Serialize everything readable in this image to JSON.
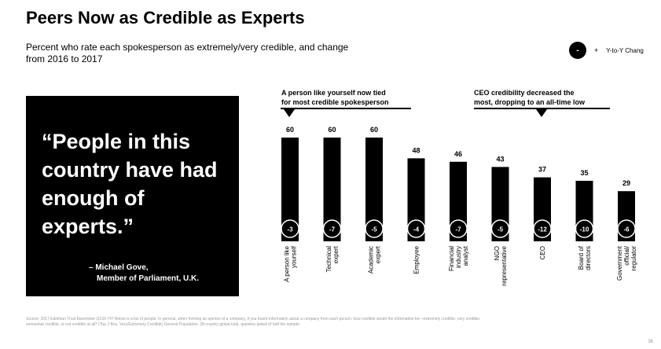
{
  "title": "Peers Now as Credible as Experts",
  "subtitle": "Percent who rate each spokesperson as extremely/very credible, and change from 2016 to 2017",
  "legend": {
    "symbol": "-",
    "plus": "+",
    "label": "Y-to-Y Chang"
  },
  "quote": {
    "text": "“People in this country have had enough of experts.”",
    "attribution_line1": "– Michael Gove,",
    "attribution_line2": "Member of Parliament, U.K."
  },
  "callouts": {
    "left": {
      "line1": "A person like yourself now tied",
      "line2": "for most credible spokesperson"
    },
    "right": {
      "line1": "CEO credibility decreased the",
      "line2": "most, dropping to an all-time low"
    }
  },
  "source": "Source: 2017 Edelman Trust Barometer Q130-747 Below is a list of people. In general, when forming an opinion of a company, if you heard information about a company from each person, how credible would the information be—extremely credible, very credible, somewhat credible, or not credible at all? (Top 2 Box, Very/Extremely Credible) General Population, 28-country global total, question asked of half the sample.",
  "page_number": "36",
  "colors": {
    "bar": "#000000",
    "background": "#ffffff",
    "footnote": "#9a9a9a"
  },
  "chart_data": {
    "type": "bar",
    "categories": [
      [
        "A person like",
        "yourself"
      ],
      [
        "Technical",
        "expert"
      ],
      [
        "Academic",
        "expert"
      ],
      [
        "Employee"
      ],
      [
        "Financial",
        "industry",
        "analyst"
      ],
      [
        "NGO",
        "representative"
      ],
      [
        "CEO"
      ],
      [
        "Board of",
        "directors"
      ],
      [
        "Government",
        "official/",
        "regulator"
      ]
    ],
    "values": [
      60,
      60,
      60,
      48,
      46,
      43,
      37,
      35,
      29
    ],
    "changes": [
      "-3",
      "-7",
      "-5",
      "-4",
      "-7",
      "-5",
      "-12",
      "-10",
      "-6"
    ],
    "ylim": [
      0,
      60
    ],
    "grid": false,
    "legend": "top-right"
  }
}
